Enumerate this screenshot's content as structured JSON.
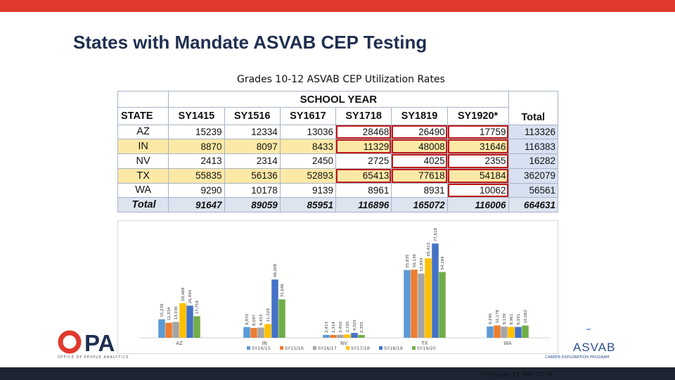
{
  "slide": {
    "title": "States with Mandate ASVAB CEP Testing",
    "footnote": "*Through 31 Dec 2019",
    "brand_color": "#e03a2e"
  },
  "table": {
    "title": "Grades 10-12 ASVAB CEP Utilization Rates",
    "group_header": "SCHOOL YEAR",
    "state_header": "STATE",
    "year_headers": [
      "SY1415",
      "SY1516",
      "SY1617",
      "SY1718",
      "SY1819",
      "SY1920*"
    ],
    "total_header": "Total",
    "rows": [
      {
        "state": "AZ",
        "values": [
          "15239",
          "12334",
          "13036",
          "28468",
          "26490",
          "17759"
        ],
        "total": "113326"
      },
      {
        "state": "IN",
        "values": [
          "8870",
          "8097",
          "8433",
          "11329",
          "48008",
          "31646"
        ],
        "total": "116383"
      },
      {
        "state": "NV",
        "values": [
          "2413",
          "2314",
          "2450",
          "2725",
          "4025",
          "2355"
        ],
        "total": "16282"
      },
      {
        "state": "TX",
        "values": [
          "55835",
          "56136",
          "52893",
          "65413",
          "77618",
          "54184"
        ],
        "total": "362079"
      },
      {
        "state": "WA",
        "values": [
          "9290",
          "10178",
          "9139",
          "8961",
          "8931",
          "10062"
        ],
        "total": "56561"
      }
    ],
    "total_row": {
      "label": "Total",
      "values": [
        "91647",
        "89059",
        "85951",
        "116896",
        "165072",
        "116006"
      ],
      "total": "664631"
    }
  },
  "chart_data": {
    "type": "bar",
    "categories": [
      "AZ",
      "IN",
      "NV",
      "TX",
      "WA"
    ],
    "series": [
      {
        "name": "SY14/15",
        "values": [
          15239,
          8870,
          2413,
          55835,
          9290
        ],
        "labels": [
          "15,239",
          "8,870",
          "2,413",
          "55,835",
          "9,290"
        ],
        "color": "#5b9bd5"
      },
      {
        "name": "SY15/16",
        "values": [
          12334,
          8097,
          2314,
          56136,
          10178
        ],
        "labels": [
          "12,334",
          "8,097",
          "2,314",
          "56,136",
          "10,178"
        ],
        "color": "#ed7d31"
      },
      {
        "name": "SY16/17",
        "values": [
          13036,
          8433,
          2450,
          52893,
          9139
        ],
        "labels": [
          "13,036",
          "8,433",
          "2,450",
          "52,893",
          "9,139"
        ],
        "color": "#a5a5a5"
      },
      {
        "name": "SY17/18",
        "values": [
          28468,
          11329,
          2725,
          65413,
          8961
        ],
        "labels": [
          "28,468",
          "11,329",
          "2,725",
          "65,413",
          "8,961"
        ],
        "color": "#ffc000"
      },
      {
        "name": "SY18/19",
        "values": [
          26490,
          48008,
          4025,
          77618,
          8931
        ],
        "labels": [
          "26,490",
          "48,008",
          "4,025",
          "77,618",
          "8,931"
        ],
        "color": "#4472c4"
      },
      {
        "name": "SY19/20",
        "values": [
          17759,
          31646,
          2355,
          54184,
          10062
        ],
        "labels": [
          "17,759",
          "31,646",
          "2,355",
          "54,184",
          "10,062"
        ],
        "color": "#70ad47"
      }
    ],
    "ylim": [
      0,
      80000
    ],
    "grid": false,
    "legend": "bottom"
  },
  "logos": {
    "opa_text": "OPA",
    "opa_sub": "OFFICE OF PEOPLE ANALYTICS",
    "opa_color": "#e03a2e",
    "asvab_word": "ASVAB",
    "asvab_tag": "CAREER EXPLORATION PROGRAM",
    "asvab_color": "#2b4f8f"
  }
}
